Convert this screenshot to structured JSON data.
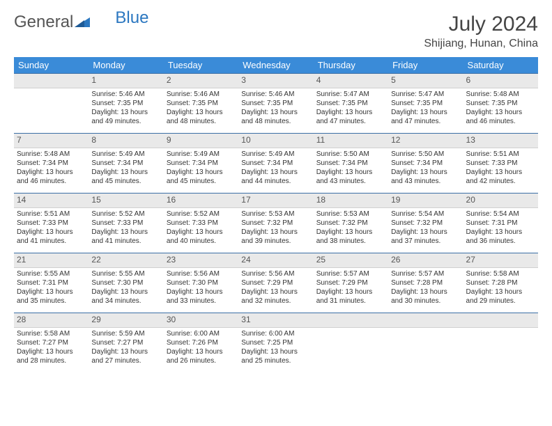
{
  "logo": {
    "part1": "General",
    "part2": "Blue"
  },
  "title": {
    "month": "July 2024",
    "location": "Shijiang, Hunan, China"
  },
  "colors": {
    "header_bg": "#3a8bd8",
    "daynum_bg": "#e9e9e9",
    "rule": "#3a6ea5"
  },
  "weekdays": [
    "Sunday",
    "Monday",
    "Tuesday",
    "Wednesday",
    "Thursday",
    "Friday",
    "Saturday"
  ],
  "weeks": [
    [
      {
        "n": "",
        "sr": "",
        "ss": "",
        "dl": ""
      },
      {
        "n": "1",
        "sr": "Sunrise: 5:46 AM",
        "ss": "Sunset: 7:35 PM",
        "dl": "Daylight: 13 hours and 49 minutes."
      },
      {
        "n": "2",
        "sr": "Sunrise: 5:46 AM",
        "ss": "Sunset: 7:35 PM",
        "dl": "Daylight: 13 hours and 48 minutes."
      },
      {
        "n": "3",
        "sr": "Sunrise: 5:46 AM",
        "ss": "Sunset: 7:35 PM",
        "dl": "Daylight: 13 hours and 48 minutes."
      },
      {
        "n": "4",
        "sr": "Sunrise: 5:47 AM",
        "ss": "Sunset: 7:35 PM",
        "dl": "Daylight: 13 hours and 47 minutes."
      },
      {
        "n": "5",
        "sr": "Sunrise: 5:47 AM",
        "ss": "Sunset: 7:35 PM",
        "dl": "Daylight: 13 hours and 47 minutes."
      },
      {
        "n": "6",
        "sr": "Sunrise: 5:48 AM",
        "ss": "Sunset: 7:35 PM",
        "dl": "Daylight: 13 hours and 46 minutes."
      }
    ],
    [
      {
        "n": "7",
        "sr": "Sunrise: 5:48 AM",
        "ss": "Sunset: 7:34 PM",
        "dl": "Daylight: 13 hours and 46 minutes."
      },
      {
        "n": "8",
        "sr": "Sunrise: 5:49 AM",
        "ss": "Sunset: 7:34 PM",
        "dl": "Daylight: 13 hours and 45 minutes."
      },
      {
        "n": "9",
        "sr": "Sunrise: 5:49 AM",
        "ss": "Sunset: 7:34 PM",
        "dl": "Daylight: 13 hours and 45 minutes."
      },
      {
        "n": "10",
        "sr": "Sunrise: 5:49 AM",
        "ss": "Sunset: 7:34 PM",
        "dl": "Daylight: 13 hours and 44 minutes."
      },
      {
        "n": "11",
        "sr": "Sunrise: 5:50 AM",
        "ss": "Sunset: 7:34 PM",
        "dl": "Daylight: 13 hours and 43 minutes."
      },
      {
        "n": "12",
        "sr": "Sunrise: 5:50 AM",
        "ss": "Sunset: 7:34 PM",
        "dl": "Daylight: 13 hours and 43 minutes."
      },
      {
        "n": "13",
        "sr": "Sunrise: 5:51 AM",
        "ss": "Sunset: 7:33 PM",
        "dl": "Daylight: 13 hours and 42 minutes."
      }
    ],
    [
      {
        "n": "14",
        "sr": "Sunrise: 5:51 AM",
        "ss": "Sunset: 7:33 PM",
        "dl": "Daylight: 13 hours and 41 minutes."
      },
      {
        "n": "15",
        "sr": "Sunrise: 5:52 AM",
        "ss": "Sunset: 7:33 PM",
        "dl": "Daylight: 13 hours and 41 minutes."
      },
      {
        "n": "16",
        "sr": "Sunrise: 5:52 AM",
        "ss": "Sunset: 7:33 PM",
        "dl": "Daylight: 13 hours and 40 minutes."
      },
      {
        "n": "17",
        "sr": "Sunrise: 5:53 AM",
        "ss": "Sunset: 7:32 PM",
        "dl": "Daylight: 13 hours and 39 minutes."
      },
      {
        "n": "18",
        "sr": "Sunrise: 5:53 AM",
        "ss": "Sunset: 7:32 PM",
        "dl": "Daylight: 13 hours and 38 minutes."
      },
      {
        "n": "19",
        "sr": "Sunrise: 5:54 AM",
        "ss": "Sunset: 7:32 PM",
        "dl": "Daylight: 13 hours and 37 minutes."
      },
      {
        "n": "20",
        "sr": "Sunrise: 5:54 AM",
        "ss": "Sunset: 7:31 PM",
        "dl": "Daylight: 13 hours and 36 minutes."
      }
    ],
    [
      {
        "n": "21",
        "sr": "Sunrise: 5:55 AM",
        "ss": "Sunset: 7:31 PM",
        "dl": "Daylight: 13 hours and 35 minutes."
      },
      {
        "n": "22",
        "sr": "Sunrise: 5:55 AM",
        "ss": "Sunset: 7:30 PM",
        "dl": "Daylight: 13 hours and 34 minutes."
      },
      {
        "n": "23",
        "sr": "Sunrise: 5:56 AM",
        "ss": "Sunset: 7:30 PM",
        "dl": "Daylight: 13 hours and 33 minutes."
      },
      {
        "n": "24",
        "sr": "Sunrise: 5:56 AM",
        "ss": "Sunset: 7:29 PM",
        "dl": "Daylight: 13 hours and 32 minutes."
      },
      {
        "n": "25",
        "sr": "Sunrise: 5:57 AM",
        "ss": "Sunset: 7:29 PM",
        "dl": "Daylight: 13 hours and 31 minutes."
      },
      {
        "n": "26",
        "sr": "Sunrise: 5:57 AM",
        "ss": "Sunset: 7:28 PM",
        "dl": "Daylight: 13 hours and 30 minutes."
      },
      {
        "n": "27",
        "sr": "Sunrise: 5:58 AM",
        "ss": "Sunset: 7:28 PM",
        "dl": "Daylight: 13 hours and 29 minutes."
      }
    ],
    [
      {
        "n": "28",
        "sr": "Sunrise: 5:58 AM",
        "ss": "Sunset: 7:27 PM",
        "dl": "Daylight: 13 hours and 28 minutes."
      },
      {
        "n": "29",
        "sr": "Sunrise: 5:59 AM",
        "ss": "Sunset: 7:27 PM",
        "dl": "Daylight: 13 hours and 27 minutes."
      },
      {
        "n": "30",
        "sr": "Sunrise: 6:00 AM",
        "ss": "Sunset: 7:26 PM",
        "dl": "Daylight: 13 hours and 26 minutes."
      },
      {
        "n": "31",
        "sr": "Sunrise: 6:00 AM",
        "ss": "Sunset: 7:25 PM",
        "dl": "Daylight: 13 hours and 25 minutes."
      },
      {
        "n": "",
        "sr": "",
        "ss": "",
        "dl": ""
      },
      {
        "n": "",
        "sr": "",
        "ss": "",
        "dl": ""
      },
      {
        "n": "",
        "sr": "",
        "ss": "",
        "dl": ""
      }
    ]
  ]
}
